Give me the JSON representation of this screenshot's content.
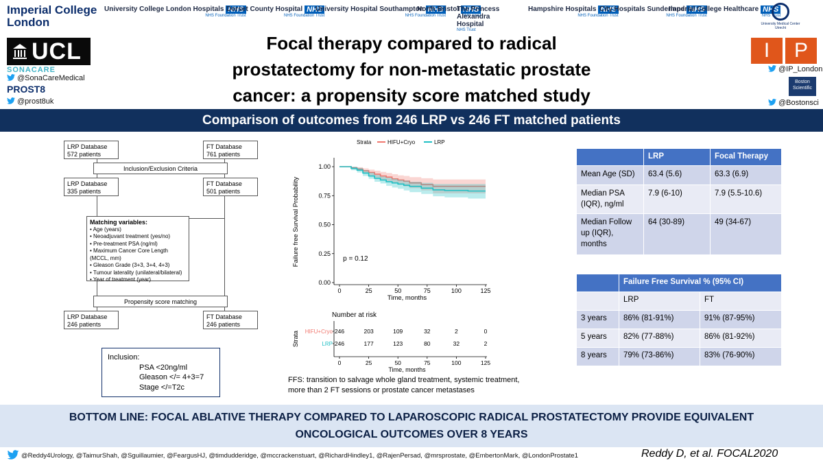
{
  "header": {
    "imperial": [
      "Imperial College",
      "London"
    ],
    "nhs_trusts": [
      {
        "name": "University College London Hospitals",
        "sub": "NHS Foundation Trust"
      },
      {
        "name": "Dorset County Hospital",
        "sub": "NHS Foundation Trust"
      },
      {
        "name": "University Hospital Southampton",
        "sub": "NHS Foundation Trust"
      },
      {
        "name": "North Bristol",
        "sub": "NHS Trust"
      },
      {
        "name": "The Princess Alexandra Hospital",
        "sub": "NHS Trust"
      },
      {
        "name": "Hampshire Hospitals",
        "sub": "NHS Foundation Trust"
      },
      {
        "name": "City Hospitals Sunderland",
        "sub": "NHS Foundation Trust"
      },
      {
        "name": "Imperial College Healthcare",
        "sub": "NHS Trust"
      }
    ],
    "nhs_badge": "NHS",
    "umc": "University Medical Center Utrecht",
    "ucl": "UCL",
    "sonacare": "SONACARE",
    "sonacare_handle": "@SonaCareMedical",
    "prost8": "PROST8",
    "prost8_handle": "@prost8uk",
    "ip_i": "I",
    "ip_p": "P",
    "ip_handle": "@IP_London",
    "boston": "Boston Scientific",
    "boston_handle": "@Bostonsci"
  },
  "title": [
    "Focal therapy compared to radical",
    "prostatectomy for non-metastatic prostate",
    "cancer: a propensity score matched study"
  ],
  "banner": "Comparison of outcomes from 246 LRP vs 246 FT matched patients",
  "flow": {
    "lrp_db": [
      "LRP Database",
      "572 patients"
    ],
    "ft_db": [
      "FT Database",
      "761 patients"
    ],
    "criteria": "Inclusion/Exclusion Criteria",
    "lrp_db2": [
      "LRP Database",
      "335 patients"
    ],
    "ft_db2": [
      "FT Database",
      "501 patients"
    ],
    "matching_title": "Matching variables:",
    "matching": [
      "Age (years)",
      "Neoadjuvant treatment (yes/no)",
      "Pre-treatment PSA (ng/ml)",
      "Maximum Cancer Core Length (MCCL, mm)",
      "Gleason Grade (3+3, 3+4, 4+3)",
      "Tumour laterality (unilateral/bilateral)",
      "Year of treatment (year)"
    ],
    "psm": "Propensity score matching",
    "lrp_db3": [
      "LRP Database",
      "246 patients"
    ],
    "ft_db3": [
      "FT Database",
      "246 patients"
    ]
  },
  "inclusion": {
    "title": "Inclusion:",
    "items": [
      "PSA <20ng/ml",
      "Gleason </= 4+3=7",
      "Stage </=T2c"
    ]
  },
  "km": {
    "legend_title": "Strata",
    "ylabel": "Failure free Survival Probability",
    "xlabel": "Time, months",
    "pvalue": "p = 0.12",
    "risk_title": "Number at risk",
    "risk_ylabel": "Strata",
    "note": "FFS: transition to salvage whole gland treatment, systemic treatment, more than 2 FT sessions or prostate cancer metastases"
  },
  "chart_data": {
    "type": "line",
    "xlabel": "Time, months",
    "ylabel": "Failure free Survival Probability",
    "xlim": [
      0,
      125
    ],
    "ylim": [
      0,
      1
    ],
    "xticks": [
      0,
      25,
      50,
      75,
      100,
      125
    ],
    "yticks": [
      "0.00",
      "0.25",
      "0.50",
      "0.75",
      "1.00"
    ],
    "series": [
      {
        "name": "HIFU+Cryo",
        "color": "#f0766d",
        "x": [
          0,
          10,
          15,
          20,
          25,
          30,
          35,
          40,
          45,
          50,
          55,
          60,
          70,
          80,
          90,
          100,
          110,
          120,
          125
        ],
        "y": [
          1.0,
          0.99,
          0.98,
          0.965,
          0.95,
          0.935,
          0.92,
          0.91,
          0.895,
          0.885,
          0.875,
          0.86,
          0.845,
          0.83,
          0.83,
          0.83,
          0.83,
          0.83,
          0.83
        ],
        "lo": [
          1.0,
          0.98,
          0.965,
          0.945,
          0.925,
          0.905,
          0.89,
          0.875,
          0.86,
          0.845,
          0.83,
          0.815,
          0.795,
          0.77,
          0.77,
          0.77,
          0.77,
          0.77,
          0.77
        ],
        "hi": [
          1.0,
          1.0,
          0.995,
          0.985,
          0.975,
          0.965,
          0.955,
          0.945,
          0.935,
          0.925,
          0.92,
          0.91,
          0.9,
          0.89,
          0.89,
          0.89,
          0.89,
          0.89,
          0.89
        ]
      },
      {
        "name": "LRP",
        "color": "#1fbfc4",
        "x": [
          0,
          10,
          15,
          20,
          25,
          30,
          35,
          40,
          45,
          50,
          55,
          60,
          70,
          80,
          90,
          100,
          110,
          120,
          125
        ],
        "y": [
          1.0,
          0.985,
          0.97,
          0.945,
          0.92,
          0.9,
          0.885,
          0.87,
          0.86,
          0.85,
          0.84,
          0.83,
          0.815,
          0.8,
          0.795,
          0.795,
          0.79,
          0.79,
          0.79
        ],
        "lo": [
          1.0,
          0.97,
          0.95,
          0.92,
          0.895,
          0.87,
          0.855,
          0.835,
          0.82,
          0.81,
          0.795,
          0.78,
          0.765,
          0.745,
          0.735,
          0.735,
          0.725,
          0.725,
          0.725
        ],
        "hi": [
          1.0,
          1.0,
          0.99,
          0.97,
          0.95,
          0.93,
          0.915,
          0.905,
          0.895,
          0.885,
          0.88,
          0.87,
          0.86,
          0.85,
          0.85,
          0.85,
          0.85,
          0.85,
          0.85
        ]
      }
    ],
    "risk_table": {
      "times": [
        0,
        25,
        50,
        75,
        100,
        125
      ],
      "rows": [
        {
          "name": "HIFU+Cryo",
          "values": [
            246,
            203,
            109,
            32,
            2,
            0
          ]
        },
        {
          "name": "LRP",
          "values": [
            246,
            177,
            123,
            80,
            32,
            2
          ]
        }
      ]
    }
  },
  "table1": {
    "headers": [
      "",
      "LRP",
      "Focal Therapy"
    ],
    "rows": [
      [
        "Mean Age (SD)",
        "63.4 (5.6)",
        "63.3 (6.9)"
      ],
      [
        "Median PSA (IQR), ng/ml",
        "7.9 (6-10)",
        "7.9 (5.5-10.6)"
      ],
      [
        "Median Follow up (IQR), months",
        "64 (30-89)",
        "49 (34-67)"
      ]
    ]
  },
  "table2": {
    "header": "Failure Free Survival % (95% CI)",
    "sub": [
      "LRP",
      "FT"
    ],
    "rows": [
      [
        "3 years",
        "86% (81-91%)",
        "91% (87-95%)"
      ],
      [
        "5 years",
        "82% (77-88%)",
        "86% (81-92%)"
      ],
      [
        "8 years",
        "79% (73-86%)",
        "83% (76-90%)"
      ]
    ]
  },
  "bottom_line": [
    "BOTTOM LINE: FOCAL ABLATIVE THERAPY COMPARED TO LAPAROSCOPIC RADICAL PROSTATECTOMY PROVIDE EQUIVALENT",
    "ONCOLOGICAL OUTCOMES OVER 8 YEARS"
  ],
  "footer": "@Reddy4Urology, @TaimurShah, @Sguillaumier, @FeargusHJ, @timdudderidge, @mccrackenstuart, @RichardHindley1, @RajenPersad, @mrsprostate, @EmbertonMark, @LondonProstate1",
  "citation": "Reddy D, et al. FOCAL2020",
  "colors": {
    "navy": "#11305d",
    "table_header": "#4472c4",
    "twitter": "#1da1f2"
  }
}
